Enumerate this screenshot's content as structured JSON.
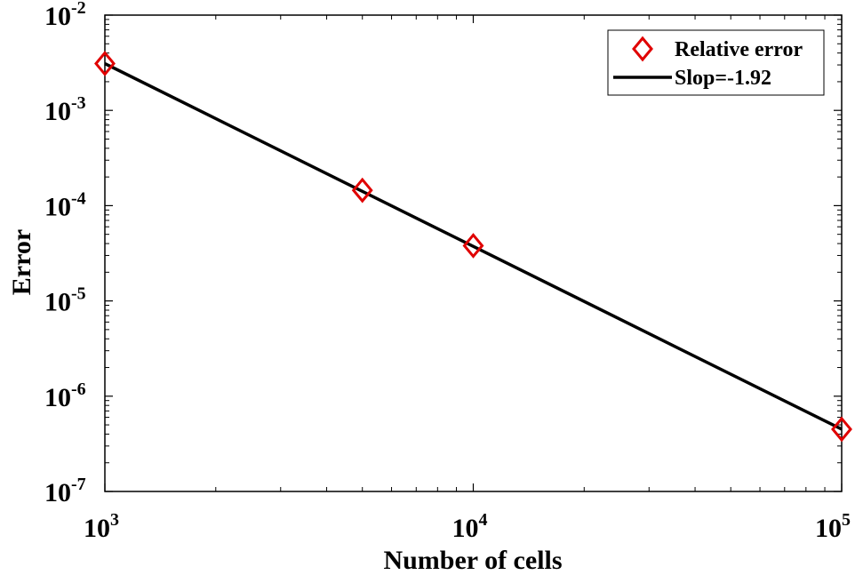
{
  "chart_data": {
    "type": "scatter",
    "xscale": "log",
    "yscale": "log",
    "xlim": [
      1000,
      100000
    ],
    "ylim": [
      1e-07,
      0.01
    ],
    "xlabel": "Number of cells",
    "ylabel": "Error",
    "xticks": [
      {
        "value": 1000,
        "base": "10",
        "exp": "3"
      },
      {
        "value": 10000,
        "base": "10",
        "exp": "4"
      },
      {
        "value": 100000,
        "base": "10",
        "exp": "5"
      }
    ],
    "yticks": [
      {
        "value": 0.01,
        "base": "10",
        "exp": "-2"
      },
      {
        "value": 0.001,
        "base": "10",
        "exp": "-3"
      },
      {
        "value": 0.0001,
        "base": "10",
        "exp": "-4"
      },
      {
        "value": 1e-05,
        "base": "10",
        "exp": "-5"
      },
      {
        "value": 1e-06,
        "base": "10",
        "exp": "-6"
      },
      {
        "value": 1e-07,
        "base": "10",
        "exp": "-7"
      }
    ],
    "grid": false,
    "legend_position": "top-right",
    "series": [
      {
        "name": "Relative error",
        "type": "scatter",
        "marker": "diamond",
        "color": "#e00000",
        "x": [
          1000,
          5000,
          10000,
          100000
        ],
        "y": [
          0.0031,
          0.000145,
          3.8e-05,
          4.5e-07
        ]
      },
      {
        "name": "Slop=-1.92",
        "type": "line",
        "color": "#000000",
        "x": [
          1000,
          100000
        ],
        "y": [
          0.0031,
          4.5e-07
        ]
      }
    ]
  }
}
